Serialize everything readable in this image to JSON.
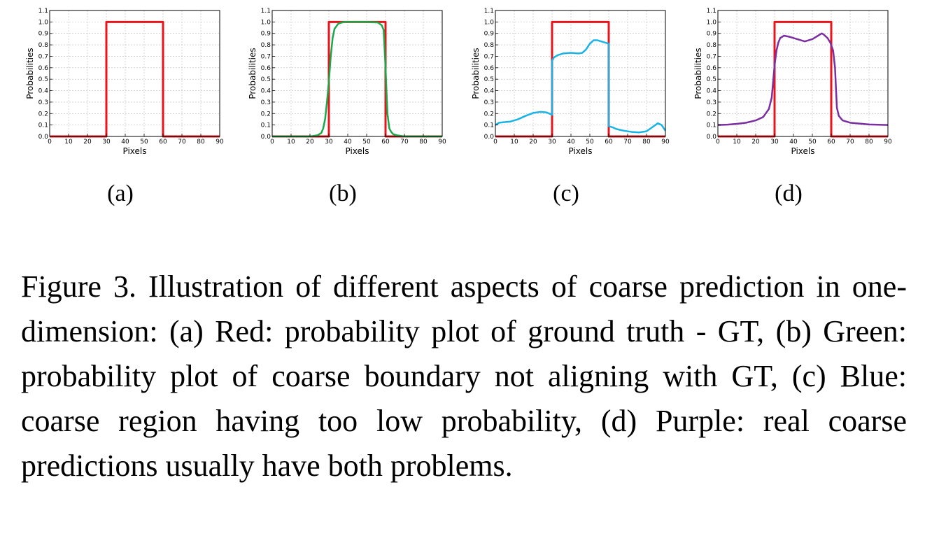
{
  "chart_data": [
    {
      "type": "line",
      "label": "(a)",
      "xlabel": "Pixels",
      "ylabel": "Probabilities",
      "xlim": [
        0,
        90
      ],
      "ylim": [
        0.0,
        1.1
      ],
      "xticks": [
        "0",
        "10",
        "20",
        "30",
        "40",
        "50",
        "60",
        "70",
        "80",
        "90"
      ],
      "yticks": [
        "0.0",
        "0.1",
        "0.2",
        "0.3",
        "0.4",
        "0.5",
        "0.6",
        "0.7",
        "0.8",
        "0.9",
        "1.0",
        "1.1"
      ],
      "grid": true,
      "series": [
        {
          "name": "Ground truth (GT)",
          "color": "#e8141b",
          "x": [
            0,
            30,
            30,
            60,
            60,
            90
          ],
          "y": [
            0,
            0,
            1,
            1,
            0,
            0
          ]
        }
      ]
    },
    {
      "type": "line",
      "label": "(b)",
      "xlabel": "Pixels",
      "ylabel": "Probabilities",
      "xlim": [
        0,
        90
      ],
      "ylim": [
        0.0,
        1.1
      ],
      "xticks": [
        "0",
        "10",
        "20",
        "30",
        "40",
        "50",
        "60",
        "70",
        "80",
        "90"
      ],
      "yticks": [
        "0.0",
        "0.1",
        "0.2",
        "0.3",
        "0.4",
        "0.5",
        "0.6",
        "0.7",
        "0.8",
        "0.9",
        "1.0",
        "1.1"
      ],
      "grid": true,
      "series": [
        {
          "name": "Ground truth (GT)",
          "color": "#e8141b",
          "x": [
            0,
            30,
            30,
            60,
            60,
            90
          ],
          "y": [
            0,
            0,
            1,
            1,
            0,
            0
          ]
        },
        {
          "name": "Coarse boundary",
          "color": "#1aa84a",
          "x": [
            0,
            20,
            24,
            26,
            27,
            28,
            29,
            30,
            31,
            32,
            33,
            35,
            38,
            42,
            50,
            56,
            58,
            59,
            60,
            61,
            62,
            63,
            64,
            66,
            70,
            80,
            90
          ],
          "y": [
            0,
            0,
            0.01,
            0.03,
            0.07,
            0.15,
            0.3,
            0.48,
            0.7,
            0.86,
            0.94,
            0.985,
            1.0,
            1.0,
            1.0,
            0.995,
            0.97,
            0.93,
            0.6,
            0.2,
            0.07,
            0.04,
            0.02,
            0.01,
            0,
            0,
            0
          ]
        }
      ]
    },
    {
      "type": "line",
      "label": "(c)",
      "xlabel": "Pixels",
      "ylabel": "Probabilities",
      "xlim": [
        0,
        90
      ],
      "ylim": [
        0.0,
        1.1
      ],
      "xticks": [
        "0",
        "10",
        "20",
        "30",
        "40",
        "50",
        "60",
        "70",
        "80",
        "90"
      ],
      "yticks": [
        "0.0",
        "0.1",
        "0.2",
        "0.3",
        "0.4",
        "0.5",
        "0.6",
        "0.7",
        "0.8",
        "0.9",
        "1.0",
        "1.1"
      ],
      "grid": true,
      "series": [
        {
          "name": "Ground truth (GT)",
          "color": "#e8141b",
          "x": [
            0,
            30,
            30,
            60,
            60,
            90
          ],
          "y": [
            0,
            0,
            1,
            1,
            0,
            0
          ]
        },
        {
          "name": "Coarse region",
          "color": "#1ab3e6",
          "x": [
            0,
            2,
            5,
            8,
            12,
            16,
            20,
            24,
            27,
            30,
            30,
            31,
            33,
            36,
            40,
            44,
            46,
            48,
            50,
            52,
            54,
            56,
            58,
            60,
            60,
            62,
            64,
            68,
            72,
            76,
            80,
            83,
            86,
            88,
            90
          ],
          "y": [
            0.1,
            0.12,
            0.125,
            0.13,
            0.15,
            0.18,
            0.205,
            0.215,
            0.21,
            0.19,
            0.66,
            0.69,
            0.71,
            0.725,
            0.73,
            0.725,
            0.73,
            0.76,
            0.81,
            0.84,
            0.84,
            0.83,
            0.82,
            0.81,
            0.09,
            0.08,
            0.065,
            0.05,
            0.04,
            0.035,
            0.045,
            0.08,
            0.115,
            0.1,
            0.05
          ]
        }
      ]
    },
    {
      "type": "line",
      "label": "(d)",
      "xlabel": "Pixels",
      "ylabel": "Probabilities",
      "xlim": [
        0,
        90
      ],
      "ylim": [
        0.0,
        1.1
      ],
      "xticks": [
        "0",
        "10",
        "20",
        "30",
        "40",
        "50",
        "60",
        "70",
        "80",
        "90"
      ],
      "yticks": [
        "0.0",
        "0.1",
        "0.2",
        "0.3",
        "0.4",
        "0.5",
        "0.6",
        "0.7",
        "0.8",
        "0.9",
        "1.0",
        "1.1"
      ],
      "grid": true,
      "series": [
        {
          "name": "Ground truth (GT)",
          "color": "#e8141b",
          "x": [
            0,
            30,
            30,
            60,
            60,
            90
          ],
          "y": [
            0,
            0,
            1,
            1,
            0,
            0
          ]
        },
        {
          "name": "Real coarse prediction",
          "color": "#7b2fa0",
          "x": [
            0,
            5,
            10,
            15,
            20,
            24,
            27,
            28.5,
            30,
            31,
            32,
            33,
            35,
            38,
            42,
            46,
            50,
            53,
            55,
            56,
            58,
            59.5,
            61,
            62,
            62.5,
            63,
            64,
            66,
            70,
            80,
            90
          ],
          "y": [
            0.1,
            0.103,
            0.11,
            0.12,
            0.14,
            0.17,
            0.24,
            0.34,
            0.62,
            0.75,
            0.82,
            0.86,
            0.88,
            0.87,
            0.85,
            0.83,
            0.85,
            0.88,
            0.9,
            0.89,
            0.86,
            0.82,
            0.75,
            0.6,
            0.42,
            0.25,
            0.18,
            0.14,
            0.12,
            0.105,
            0.1
          ]
        }
      ]
    }
  ],
  "caption": "Figure 3. Illustration of different aspects of coarse prediction in one-dimension: (a) Red: probability plot of ground truth - GT, (b) Green: probability plot of coarse boundary not aligning with GT, (c) Blue: coarse region having too low probability, (d) Purple: real coarse predictions usually have both problems."
}
